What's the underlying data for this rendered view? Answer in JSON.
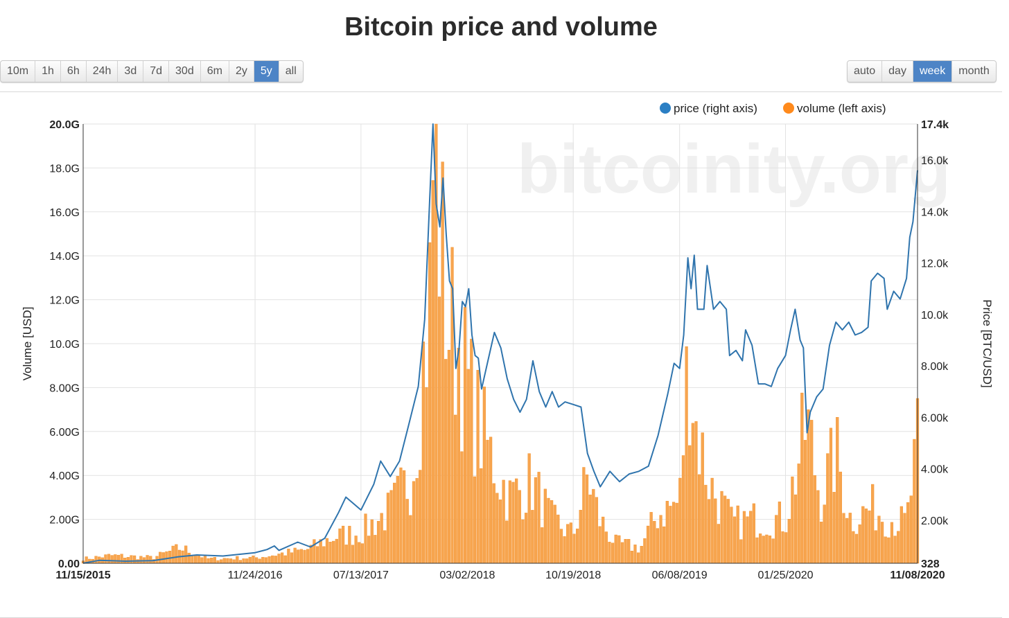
{
  "title": "Bitcoin price and volume",
  "range_buttons": [
    {
      "label": "10m",
      "active": false
    },
    {
      "label": "1h",
      "active": false
    },
    {
      "label": "6h",
      "active": false
    },
    {
      "label": "24h",
      "active": false
    },
    {
      "label": "3d",
      "active": false
    },
    {
      "label": "7d",
      "active": false
    },
    {
      "label": "30d",
      "active": false
    },
    {
      "label": "6m",
      "active": false
    },
    {
      "label": "2y",
      "active": false
    },
    {
      "label": "5y",
      "active": true
    },
    {
      "label": "all",
      "active": false
    }
  ],
  "resolution_buttons": [
    {
      "label": "auto",
      "active": false
    },
    {
      "label": "day",
      "active": false
    },
    {
      "label": "week",
      "active": true
    },
    {
      "label": "month",
      "active": false
    }
  ],
  "watermark": "bitcoinity.org",
  "colors": {
    "price": "#2f74ad",
    "volume": "#f7a54f",
    "volume_stroke": "#f28c22",
    "legend_price": "#2b7fc4",
    "legend_volume": "#ff8a1c",
    "active_button": "#4d84c6"
  },
  "chart_data": {
    "type": "bar+line",
    "legend": [
      {
        "name": "price (right axis)",
        "color": "#2b7fc4"
      },
      {
        "name": "volume (left axis)",
        "color": "#ff8a1c"
      }
    ],
    "legend_position": "top-right",
    "ylabel_left": "Volume [USD]",
    "ylabel_right": "Price [BTC/USD]",
    "x_range": [
      "11/15/2015",
      "11/08/2020"
    ],
    "x_ticks": [
      {
        "label": "11/15/2015",
        "date": "2015-11-15",
        "bold": true
      },
      {
        "label": "11/24/2016",
        "date": "2016-11-24",
        "bold": false
      },
      {
        "label": "07/13/2017",
        "date": "2017-07-13",
        "bold": false
      },
      {
        "label": "03/02/2018",
        "date": "2018-03-02",
        "bold": false
      },
      {
        "label": "10/19/2018",
        "date": "2018-10-19",
        "bold": false
      },
      {
        "label": "06/08/2019",
        "date": "2019-06-08",
        "bold": false
      },
      {
        "label": "01/25/2020",
        "date": "2020-01-25",
        "bold": false
      },
      {
        "label": "11/08/2020",
        "date": "2020-11-08",
        "bold": true
      }
    ],
    "left_axis": {
      "min": 0,
      "max": 20000000000,
      "ticks": [
        {
          "label": "0.00",
          "value": 0,
          "bold": true
        },
        {
          "label": "2.00G",
          "value": 2000000000,
          "bold": false
        },
        {
          "label": "4.00G",
          "value": 4000000000,
          "bold": false
        },
        {
          "label": "6.00G",
          "value": 6000000000,
          "bold": false
        },
        {
          "label": "8.00G",
          "value": 8000000000,
          "bold": false
        },
        {
          "label": "10.0G",
          "value": 10000000000,
          "bold": false
        },
        {
          "label": "12.0G",
          "value": 12000000000,
          "bold": false
        },
        {
          "label": "14.0G",
          "value": 14000000000,
          "bold": false
        },
        {
          "label": "16.0G",
          "value": 16000000000,
          "bold": false
        },
        {
          "label": "18.0G",
          "value": 18000000000,
          "bold": false
        },
        {
          "label": "20.0G",
          "value": 20000000000,
          "bold": true
        }
      ]
    },
    "right_axis": {
      "min": 328,
      "max": 17400,
      "ticks": [
        {
          "label": "328",
          "value": 328,
          "bold": true
        },
        {
          "label": "2.00k",
          "value": 2000,
          "bold": false
        },
        {
          "label": "4.00k",
          "value": 4000,
          "bold": false
        },
        {
          "label": "6.00k",
          "value": 6000,
          "bold": false
        },
        {
          "label": "8.00k",
          "value": 8000,
          "bold": false
        },
        {
          "label": "10.0k",
          "value": 10000,
          "bold": false
        },
        {
          "label": "12.0k",
          "value": 12000,
          "bold": false
        },
        {
          "label": "14.0k",
          "value": 14000,
          "bold": false
        },
        {
          "label": "16.0k",
          "value": 16000,
          "bold": false
        },
        {
          "label": "17.4k",
          "value": 17400,
          "bold": true
        }
      ]
    },
    "series": [
      {
        "name": "price (right axis)",
        "axis": "right",
        "type": "line",
        "points": [
          [
            "2015-11-15",
            330
          ],
          [
            "2015-12-20",
            440
          ],
          [
            "2016-02-15",
            410
          ],
          [
            "2016-04-15",
            430
          ],
          [
            "2016-06-10",
            580
          ],
          [
            "2016-07-20",
            650
          ],
          [
            "2016-09-15",
            610
          ],
          [
            "2016-11-24",
            740
          ],
          [
            "2016-12-20",
            860
          ],
          [
            "2017-01-05",
            1000
          ],
          [
            "2017-01-15",
            830
          ],
          [
            "2017-02-25",
            1150
          ],
          [
            "2017-03-25",
            960
          ],
          [
            "2017-04-25",
            1300
          ],
          [
            "2017-05-25",
            2300
          ],
          [
            "2017-06-10",
            2900
          ],
          [
            "2017-07-13",
            2400
          ],
          [
            "2017-08-10",
            3400
          ],
          [
            "2017-08-25",
            4300
          ],
          [
            "2017-09-15",
            3700
          ],
          [
            "2017-10-05",
            4300
          ],
          [
            "2017-10-25",
            5700
          ],
          [
            "2017-11-15",
            7200
          ],
          [
            "2017-11-29",
            9800
          ],
          [
            "2017-12-10",
            14500
          ],
          [
            "2017-12-17",
            17400
          ],
          [
            "2017-12-24",
            14300
          ],
          [
            "2018-01-01",
            13400
          ],
          [
            "2018-01-08",
            15300
          ],
          [
            "2018-01-15",
            13100
          ],
          [
            "2018-01-22",
            11300
          ],
          [
            "2018-01-29",
            11000
          ],
          [
            "2018-02-05",
            7900
          ],
          [
            "2018-02-12",
            8700
          ],
          [
            "2018-02-19",
            10500
          ],
          [
            "2018-02-26",
            10300
          ],
          [
            "2018-03-05",
            11000
          ],
          [
            "2018-03-12",
            9200
          ],
          [
            "2018-03-19",
            8400
          ],
          [
            "2018-03-26",
            8300
          ],
          [
            "2018-04-02",
            7100
          ],
          [
            "2018-04-16",
            8200
          ],
          [
            "2018-04-30",
            9300
          ],
          [
            "2018-05-14",
            8700
          ],
          [
            "2018-05-28",
            7500
          ],
          [
            "2018-06-11",
            6700
          ],
          [
            "2018-06-25",
            6200
          ],
          [
            "2018-07-09",
            6700
          ],
          [
            "2018-07-23",
            8200
          ],
          [
            "2018-08-06",
            7000
          ],
          [
            "2018-08-20",
            6400
          ],
          [
            "2018-09-03",
            7000
          ],
          [
            "2018-09-17",
            6400
          ],
          [
            "2018-10-01",
            6600
          ],
          [
            "2018-10-19",
            6500
          ],
          [
            "2018-11-05",
            6400
          ],
          [
            "2018-11-19",
            4600
          ],
          [
            "2018-12-03",
            3900
          ],
          [
            "2018-12-17",
            3300
          ],
          [
            "2019-01-07",
            3900
          ],
          [
            "2019-01-28",
            3500
          ],
          [
            "2019-02-18",
            3800
          ],
          [
            "2019-03-11",
            3900
          ],
          [
            "2019-04-01",
            4100
          ],
          [
            "2019-04-22",
            5300
          ],
          [
            "2019-05-13",
            6900
          ],
          [
            "2019-05-27",
            8100
          ],
          [
            "2019-06-08",
            7900
          ],
          [
            "2019-06-17",
            9200
          ],
          [
            "2019-06-26",
            12200
          ],
          [
            "2019-07-03",
            11000
          ],
          [
            "2019-07-10",
            12300
          ],
          [
            "2019-07-17",
            10200
          ],
          [
            "2019-07-31",
            10200
          ],
          [
            "2019-08-07",
            11900
          ],
          [
            "2019-08-21",
            10200
          ],
          [
            "2019-09-04",
            10500
          ],
          [
            "2019-09-18",
            10200
          ],
          [
            "2019-09-25",
            8400
          ],
          [
            "2019-10-09",
            8600
          ],
          [
            "2019-10-23",
            8200
          ],
          [
            "2019-10-30",
            9400
          ],
          [
            "2019-11-13",
            8800
          ],
          [
            "2019-11-27",
            7300
          ],
          [
            "2019-12-11",
            7300
          ],
          [
            "2019-12-25",
            7200
          ],
          [
            "2020-01-08",
            7900
          ],
          [
            "2020-01-25",
            8400
          ],
          [
            "2020-02-05",
            9400
          ],
          [
            "2020-02-15",
            10200
          ],
          [
            "2020-02-26",
            9000
          ],
          [
            "2020-03-04",
            8700
          ],
          [
            "2020-03-12",
            5400
          ],
          [
            "2020-03-19",
            6200
          ],
          [
            "2020-04-02",
            6800
          ],
          [
            "2020-04-16",
            7100
          ],
          [
            "2020-04-30",
            8800
          ],
          [
            "2020-05-14",
            9700
          ],
          [
            "2020-05-28",
            9400
          ],
          [
            "2020-06-11",
            9700
          ],
          [
            "2020-06-25",
            9200
          ],
          [
            "2020-07-09",
            9300
          ],
          [
            "2020-07-23",
            9500
          ],
          [
            "2020-07-30",
            11300
          ],
          [
            "2020-08-13",
            11600
          ],
          [
            "2020-08-27",
            11400
          ],
          [
            "2020-09-03",
            10200
          ],
          [
            "2020-09-17",
            10900
          ],
          [
            "2020-10-01",
            10600
          ],
          [
            "2020-10-15",
            11400
          ],
          [
            "2020-10-22",
            13000
          ],
          [
            "2020-10-29",
            13600
          ],
          [
            "2020-11-08",
            15600
          ]
        ]
      },
      {
        "name": "volume (left axis)",
        "axis": "left",
        "type": "bar",
        "keypoints": [
          [
            "2015-11-15",
            200000000
          ],
          [
            "2016-01-15",
            350000000
          ],
          [
            "2016-04-15",
            250000000
          ],
          [
            "2016-06-15",
            700000000
          ],
          [
            "2016-08-15",
            200000000
          ],
          [
            "2016-11-24",
            250000000
          ],
          [
            "2017-01-10",
            400000000
          ],
          [
            "2017-03-15",
            600000000
          ],
          [
            "2017-05-15",
            1200000000
          ],
          [
            "2017-07-13",
            1400000000
          ],
          [
            "2017-09-15",
            2400000000
          ],
          [
            "2017-11-01",
            4000000000
          ],
          [
            "2017-12-10",
            12000000000
          ],
          [
            "2017-12-20",
            20000000000
          ],
          [
            "2018-01-05",
            14000000000
          ],
          [
            "2018-01-20",
            11000000000
          ],
          [
            "2018-02-10",
            10000000000
          ],
          [
            "2018-03-02",
            8000000000
          ],
          [
            "2018-04-01",
            6000000000
          ],
          [
            "2018-05-01",
            4500000000
          ],
          [
            "2018-06-01",
            3000000000
          ],
          [
            "2018-07-20",
            3700000000
          ],
          [
            "2018-09-01",
            2000000000
          ],
          [
            "2018-10-19",
            1300000000
          ],
          [
            "2018-11-20",
            4000000000
          ],
          [
            "2018-12-15",
            2000000000
          ],
          [
            "2019-01-20",
            900000000
          ],
          [
            "2019-03-15",
            700000000
          ],
          [
            "2019-04-20",
            2200000000
          ],
          [
            "2019-06-08",
            2800000000
          ],
          [
            "2019-06-28",
            9800000000
          ],
          [
            "2019-07-15",
            6000000000
          ],
          [
            "2019-08-15",
            3500000000
          ],
          [
            "2019-10-01",
            1800000000
          ],
          [
            "2019-11-15",
            2000000000
          ],
          [
            "2020-01-25",
            2000000000
          ],
          [
            "2020-03-12",
            6400000000
          ],
          [
            "2020-04-10",
            3000000000
          ],
          [
            "2020-05-15",
            5000000000
          ],
          [
            "2020-06-15",
            2000000000
          ],
          [
            "2020-08-01",
            2500000000
          ],
          [
            "2020-09-15",
            2000000000
          ],
          [
            "2020-10-15",
            1800000000
          ],
          [
            "2020-11-08",
            5300000000
          ]
        ]
      }
    ]
  }
}
